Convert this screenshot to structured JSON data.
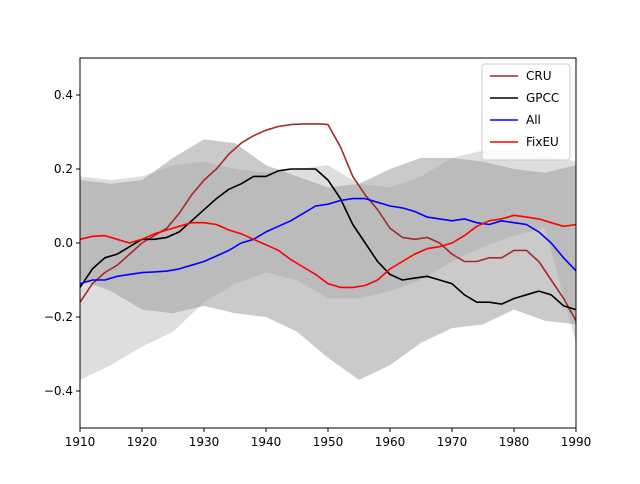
{
  "chart_data": {
    "type": "line",
    "title": "",
    "xlabel": "",
    "ylabel": "",
    "xlim": [
      1910,
      1990
    ],
    "ylim": [
      -0.5,
      0.5
    ],
    "x_ticks": [
      1910,
      1920,
      1930,
      1940,
      1950,
      1960,
      1970,
      1980,
      1990
    ],
    "y_ticks": [
      -0.4,
      -0.2,
      0.0,
      0.2,
      0.4
    ],
    "x_tick_labels": [
      "1910",
      "1920",
      "1930",
      "1940",
      "1950",
      "1960",
      "1970",
      "1980",
      "1990"
    ],
    "y_tick_labels": [
      "−0.4",
      "−0.2",
      "0.0",
      "0.2",
      "0.4"
    ],
    "grid": false,
    "legend_position": "top-right",
    "bands": [
      {
        "color": "#bdbdbd",
        "opacity": 0.5,
        "x": [
          1910,
          1915,
          1920,
          1925,
          1930,
          1935,
          1940,
          1945,
          1950,
          1955,
          1960,
          1965,
          1970,
          1975,
          1980,
          1985,
          1990
        ],
        "lower": [
          -0.37,
          -0.33,
          -0.28,
          -0.24,
          -0.16,
          -0.11,
          -0.08,
          -0.1,
          -0.15,
          -0.15,
          -0.13,
          -0.1,
          -0.05,
          -0.01,
          0.02,
          0.04,
          -0.27
        ],
        "upper": [
          0.18,
          0.17,
          0.18,
          0.21,
          0.22,
          0.2,
          0.19,
          0.2,
          0.21,
          0.16,
          0.15,
          0.18,
          0.23,
          0.25,
          0.25,
          0.24,
          0.22
        ]
      },
      {
        "color": "#9e9e9e",
        "opacity": 0.55,
        "x": [
          1910,
          1915,
          1920,
          1925,
          1930,
          1935,
          1940,
          1945,
          1950,
          1955,
          1960,
          1965,
          1970,
          1975,
          1980,
          1985,
          1990
        ],
        "lower": [
          -0.1,
          -0.13,
          -0.18,
          -0.19,
          -0.17,
          -0.19,
          -0.2,
          -0.24,
          -0.31,
          -0.37,
          -0.33,
          -0.27,
          -0.23,
          -0.22,
          -0.18,
          -0.21,
          -0.22
        ],
        "upper": [
          0.17,
          0.16,
          0.17,
          0.23,
          0.28,
          0.27,
          0.21,
          0.18,
          0.15,
          0.16,
          0.2,
          0.23,
          0.23,
          0.22,
          0.2,
          0.19,
          0.21
        ]
      }
    ],
    "series": [
      {
        "name": "CRU",
        "color": "#a52a2a",
        "x": [
          1910,
          1912,
          1914,
          1916,
          1918,
          1920,
          1922,
          1924,
          1926,
          1928,
          1930,
          1932,
          1934,
          1936,
          1938,
          1940,
          1942,
          1944,
          1946,
          1948,
          1949,
          1950,
          1952,
          1954,
          1956,
          1958,
          1960,
          1962,
          1964,
          1966,
          1968,
          1970,
          1972,
          1974,
          1976,
          1978,
          1980,
          1982,
          1984,
          1986,
          1988,
          1990
        ],
        "y": [
          -0.16,
          -0.11,
          -0.08,
          -0.06,
          -0.03,
          0.0,
          0.02,
          0.04,
          0.08,
          0.13,
          0.17,
          0.2,
          0.24,
          0.27,
          0.29,
          0.305,
          0.315,
          0.32,
          0.322,
          0.322,
          0.322,
          0.32,
          0.26,
          0.18,
          0.13,
          0.09,
          0.04,
          0.015,
          0.01,
          0.015,
          0.0,
          -0.03,
          -0.05,
          -0.05,
          -0.04,
          -0.04,
          -0.02,
          -0.02,
          -0.05,
          -0.1,
          -0.15,
          -0.21
        ]
      },
      {
        "name": "GPCC",
        "color": "#000000",
        "x": [
          1910,
          1912,
          1914,
          1916,
          1918,
          1920,
          1922,
          1924,
          1926,
          1928,
          1930,
          1932,
          1934,
          1936,
          1938,
          1940,
          1942,
          1944,
          1946,
          1948,
          1950,
          1952,
          1954,
          1956,
          1958,
          1960,
          1962,
          1964,
          1966,
          1968,
          1970,
          1972,
          1974,
          1976,
          1978,
          1980,
          1982,
          1984,
          1986,
          1988,
          1990
        ],
        "y": [
          -0.12,
          -0.07,
          -0.04,
          -0.03,
          -0.01,
          0.01,
          0.01,
          0.015,
          0.03,
          0.06,
          0.09,
          0.12,
          0.145,
          0.16,
          0.18,
          0.18,
          0.195,
          0.2,
          0.2,
          0.2,
          0.17,
          0.12,
          0.05,
          0.0,
          -0.05,
          -0.085,
          -0.1,
          -0.095,
          -0.09,
          -0.1,
          -0.11,
          -0.14,
          -0.16,
          -0.16,
          -0.165,
          -0.15,
          -0.14,
          -0.13,
          -0.14,
          -0.17,
          -0.18
        ]
      },
      {
        "name": "All",
        "color": "#0000ff",
        "x": [
          1910,
          1912,
          1914,
          1916,
          1918,
          1920,
          1922,
          1924,
          1926,
          1928,
          1930,
          1932,
          1934,
          1936,
          1938,
          1940,
          1942,
          1944,
          1946,
          1948,
          1950,
          1952,
          1954,
          1956,
          1958,
          1960,
          1962,
          1964,
          1966,
          1968,
          1970,
          1972,
          1974,
          1976,
          1978,
          1980,
          1982,
          1984,
          1986,
          1988,
          1990
        ],
        "y": [
          -0.11,
          -0.1,
          -0.1,
          -0.09,
          -0.085,
          -0.08,
          -0.078,
          -0.076,
          -0.07,
          -0.06,
          -0.05,
          -0.035,
          -0.02,
          0.0,
          0.01,
          0.03,
          0.045,
          0.06,
          0.08,
          0.1,
          0.105,
          0.115,
          0.12,
          0.12,
          0.11,
          0.1,
          0.095,
          0.085,
          0.07,
          0.065,
          0.06,
          0.065,
          0.055,
          0.05,
          0.06,
          0.055,
          0.05,
          0.03,
          0.0,
          -0.04,
          -0.075
        ]
      },
      {
        "name": "FixEU",
        "color": "#ff0000",
        "x": [
          1910,
          1912,
          1914,
          1916,
          1918,
          1920,
          1922,
          1924,
          1926,
          1928,
          1930,
          1932,
          1934,
          1936,
          1938,
          1940,
          1942,
          1944,
          1946,
          1948,
          1950,
          1952,
          1954,
          1956,
          1958,
          1960,
          1962,
          1964,
          1966,
          1968,
          1970,
          1972,
          1974,
          1976,
          1978,
          1980,
          1982,
          1984,
          1986,
          1988,
          1990
        ],
        "y": [
          0.01,
          0.018,
          0.02,
          0.01,
          0.0,
          0.01,
          0.025,
          0.035,
          0.045,
          0.055,
          0.055,
          0.05,
          0.035,
          0.025,
          0.01,
          -0.005,
          -0.02,
          -0.045,
          -0.065,
          -0.085,
          -0.11,
          -0.12,
          -0.12,
          -0.115,
          -0.1,
          -0.07,
          -0.05,
          -0.03,
          -0.015,
          -0.01,
          0.0,
          0.02,
          0.045,
          0.06,
          0.065,
          0.075,
          0.07,
          0.065,
          0.055,
          0.045,
          0.05
        ]
      }
    ]
  }
}
